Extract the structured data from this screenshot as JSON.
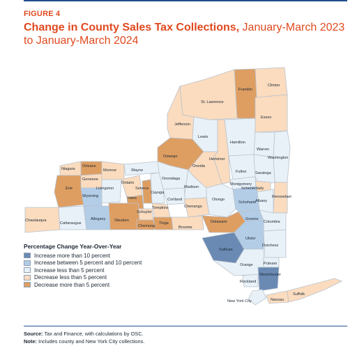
{
  "figure": {
    "label": "FIGURE 4",
    "title_bold": "Change in County Sales Tax Collections,",
    "title_rest": " January-March 2023 to January-March 2024"
  },
  "colors": {
    "increase_more_10": "#6a8ab4",
    "increase_5_10": "#b3cde7",
    "increase_less_5": "#e9f1f8",
    "decrease_less_5": "#fbdcbf",
    "decrease_more_5": "#de9e62"
  },
  "legend": {
    "title": "Percentage Change Year-Over-Year",
    "items": [
      {
        "label": "Increase more than 10 percent",
        "color_key": "increase_more_10"
      },
      {
        "label": "Increase between 5 percent and 10 percent",
        "color_key": "increase_5_10"
      },
      {
        "label": "Increase less than 5 percent",
        "color_key": "increase_less_5"
      },
      {
        "label": "Decrease less than 5 percent",
        "color_key": "decrease_less_5"
      },
      {
        "label": "Decrease more than 5 percent",
        "color_key": "decrease_more_5"
      }
    ]
  },
  "counties": {
    "clinton": "Clinton",
    "franklin": "Franklin",
    "st_lawrence": "St. Lawrence",
    "essex": "Essex",
    "jefferson": "Jefferson",
    "lewis": "Lewis",
    "hamilton": "Hamilton",
    "warren": "Warren",
    "washington": "Washington",
    "herkimer": "Herkimer",
    "oswego": "Oswego",
    "oneida": "Oneida",
    "fulton": "Fulton",
    "saratoga": "Saratoga",
    "montgomery": "Montgomery",
    "schenectady": "Schenectady",
    "rensselaer": "Rensselaer",
    "albany": "Albany",
    "niagara": "Niagara",
    "orleans": "Orleans",
    "monroe": "Monroe",
    "wayne": "Wayne",
    "genesee": "Genesee",
    "livingston": "Livingston",
    "ontario": "Ontario",
    "onondaga": "Onondaga",
    "madison": "Madison",
    "erie": "Erie",
    "wyoming": "Wyoming",
    "seneca": "Seneca",
    "cayuga": "Cayuga",
    "yates": "Yates",
    "cortland": "Cortland",
    "otsego": "Otsego",
    "schoharie": "Schoharie",
    "tompkins": "Tompkins",
    "chenango": "Chenango",
    "schuyler": "Schuyler",
    "chautauqua": "Chautauqua",
    "cattaraugus": "Cattaraugus",
    "allegany": "Allegany",
    "steuben": "Steuben",
    "chemung": "Chemung",
    "tioga": "Tioga",
    "broome": "Broome",
    "delaware": "Delaware",
    "greene": "Greene",
    "columbia": "Columbia",
    "ulster": "Ulster",
    "dutchess": "Dutchess",
    "sullivan": "Sullivan",
    "orange": "Orange",
    "putnam": "Putnam",
    "rockland": "Rockland",
    "westchester": "Westchester",
    "new_york_city": "New York City",
    "nassau": "Nassau",
    "suffolk": "Suffolk"
  },
  "footer": {
    "source_label": "Source:",
    "source_text": " Tax and Finance, with calculations by OSC.",
    "note_label": "Note:",
    "note_text": " Includes county and New York City collections."
  }
}
